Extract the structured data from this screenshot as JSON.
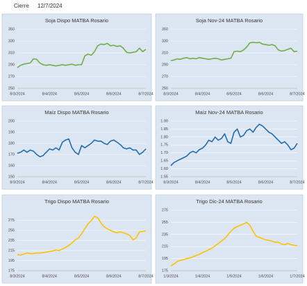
{
  "header": {
    "label": "Cierre",
    "date": "12/7/2024"
  },
  "chart_data": [
    {
      "type": "line",
      "title": "Soja Dispo MATBA Rosario",
      "color": "#70ad47",
      "ylim": [
        250,
        350
      ],
      "yticks": [
        250,
        270,
        290,
        310,
        330,
        350
      ],
      "categories": [
        "8/3/2024",
        null,
        null,
        null,
        null,
        null,
        null,
        null,
        null,
        null,
        "8/4/2024",
        null,
        null,
        null,
        null,
        null,
        null,
        null,
        null,
        null,
        "8/5/2024",
        null,
        null,
        null,
        null,
        null,
        null,
        null,
        null,
        null,
        "8/6/2024",
        null,
        null,
        null,
        null,
        null,
        null,
        null,
        null,
        null,
        "8/7/2024"
      ],
      "values": [
        285,
        289,
        291,
        292,
        293,
        300,
        299,
        293,
        290,
        289,
        290,
        289,
        288,
        289,
        290,
        289,
        290,
        291,
        289,
        290,
        290,
        305,
        308,
        306,
        312,
        322,
        325,
        324,
        326,
        322,
        323,
        321,
        322,
        318,
        311,
        310,
        311,
        312,
        318,
        312,
        316
      ]
    },
    {
      "type": "line",
      "title": "Soja Nov-24 MATBA Rosario",
      "color": "#70ad47",
      "ylim": [
        250,
        350
      ],
      "yticks": [
        250,
        270,
        290,
        310,
        330,
        350
      ],
      "categories": [
        "8/3/2024",
        null,
        null,
        null,
        null,
        null,
        null,
        null,
        null,
        null,
        "8/4/2024",
        null,
        null,
        null,
        null,
        null,
        null,
        null,
        null,
        null,
        "8/5/2024",
        null,
        null,
        null,
        null,
        null,
        null,
        null,
        null,
        null,
        "8/6/2024",
        null,
        null,
        null,
        null,
        null,
        null,
        null,
        null,
        null,
        "8/7/2024"
      ],
      "values": [
        297,
        298,
        300,
        299,
        301,
        302,
        300,
        301,
        300,
        302,
        301,
        300,
        299,
        300,
        301,
        300,
        298,
        299,
        300,
        301,
        312,
        313,
        312,
        315,
        320,
        327,
        328,
        327,
        328,
        325,
        324,
        323,
        324,
        322,
        315,
        313,
        314,
        316,
        318,
        312,
        313
      ]
    },
    {
      "type": "line",
      "title": "Maíz Dispo MATBA Rosario",
      "color": "#1f6cb0",
      "ylim": [
        150,
        200
      ],
      "yticks": [
        150,
        160,
        170,
        180,
        190,
        200
      ],
      "categories": [
        "8/3/2024",
        null,
        null,
        null,
        null,
        null,
        null,
        null,
        null,
        null,
        "8/4/2024",
        null,
        null,
        null,
        null,
        null,
        null,
        null,
        null,
        null,
        "8/5/2024",
        null,
        null,
        null,
        null,
        null,
        null,
        null,
        null,
        null,
        "8/6/2024",
        null,
        null,
        null,
        null,
        null,
        null,
        null,
        null,
        null,
        "8/7/2024"
      ],
      "values": [
        171,
        172,
        174,
        172,
        174,
        173,
        170,
        168,
        169,
        172,
        175,
        174,
        176,
        174,
        181,
        183,
        184,
        176,
        172,
        170,
        178,
        176,
        178,
        180,
        183,
        182,
        182,
        180,
        179,
        182,
        183,
        181,
        179,
        176,
        175,
        176,
        174,
        174,
        170,
        172,
        175
      ]
    },
    {
      "type": "line",
      "title": "Maíz Nov-24 MATBA Rosario",
      "color": "#1f6cb0",
      "ylim": [
        1.55,
        1.9
      ],
      "yticks": [
        1.55,
        {
          "value": 1.6,
          "label": "1.60"
        },
        1.65,
        {
          "value": 1.7,
          "label": "1.70"
        },
        1.75,
        {
          "value": 1.8,
          "label": "1.80"
        },
        1.85,
        {
          "value": 1.9,
          "label": "1.90"
        }
      ],
      "categories": [
        "8/3/2024",
        null,
        null,
        null,
        null,
        null,
        null,
        null,
        null,
        null,
        "8/4/2024",
        null,
        null,
        null,
        null,
        null,
        null,
        null,
        null,
        null,
        "8/5/2024",
        null,
        null,
        null,
        null,
        null,
        null,
        null,
        null,
        null,
        "8/6/2024",
        null,
        null,
        null,
        null,
        null,
        null,
        null,
        null,
        null,
        "8/7/2024"
      ],
      "values": [
        1.62,
        1.64,
        1.65,
        1.66,
        1.67,
        1.68,
        1.7,
        1.71,
        1.7,
        1.72,
        1.73,
        1.75,
        1.78,
        1.77,
        1.8,
        1.78,
        1.79,
        1.82,
        1.77,
        1.76,
        1.83,
        1.85,
        1.8,
        1.81,
        1.84,
        1.85,
        1.83,
        1.86,
        1.88,
        1.87,
        1.85,
        1.83,
        1.82,
        1.8,
        1.78,
        1.76,
        1.77,
        1.75,
        1.72,
        1.73,
        1.76
      ]
    },
    {
      "type": "line",
      "title": "Trigo Dispo MATBA Rosario",
      "color": "#ffc000",
      "ylim": [
        175,
        295
      ],
      "yticks": [
        175,
        195,
        215,
        235,
        255,
        275
      ],
      "categories": [
        "8/3/2024",
        null,
        null,
        null,
        null,
        null,
        null,
        null,
        null,
        null,
        "8/4/2024",
        null,
        null,
        null,
        null,
        null,
        null,
        null,
        null,
        null,
        "8/5/2024",
        null,
        null,
        null,
        null,
        null,
        null,
        null,
        null,
        null,
        "8/6/2024",
        null,
        null,
        null,
        null,
        null,
        null,
        null,
        null,
        null,
        "8/7/2024"
      ],
      "values": [
        207,
        206,
        208,
        210,
        209,
        209,
        210,
        210,
        211,
        212,
        213,
        214,
        216,
        215,
        218,
        221,
        225,
        230,
        236,
        240,
        248,
        258,
        268,
        274,
        283,
        280,
        270,
        262,
        258,
        255,
        252,
        250,
        252,
        250,
        248,
        245,
        236,
        240,
        252,
        253,
        254
      ]
    },
    {
      "type": "line",
      "title": "Trigo Dic-24 MATBA Rosario",
      "color": "#ffc000",
      "ylim": [
        175,
        275
      ],
      "yticks": [
        175,
        195,
        215,
        235,
        255,
        275
      ],
      "categories": [
        "1/3/2024",
        null,
        null,
        null,
        null,
        null,
        null,
        null,
        null,
        null,
        "1/4/2024",
        null,
        null,
        null,
        null,
        null,
        null,
        null,
        null,
        null,
        "1/5/2024",
        null,
        null,
        null,
        null,
        null,
        null,
        null,
        null,
        null,
        "1/6/2024",
        null,
        null,
        null,
        null,
        null,
        null,
        null,
        null,
        null,
        "1/7/2024"
      ],
      "values": [
        183,
        186,
        190,
        192,
        193,
        195,
        196,
        198,
        200,
        202,
        205,
        207,
        210,
        212,
        216,
        220,
        224,
        228,
        234,
        240,
        245,
        248,
        250,
        252,
        255,
        250,
        240,
        232,
        230,
        228,
        226,
        225,
        224,
        222,
        222,
        219,
        218,
        220,
        218,
        217,
        216
      ]
    }
  ]
}
